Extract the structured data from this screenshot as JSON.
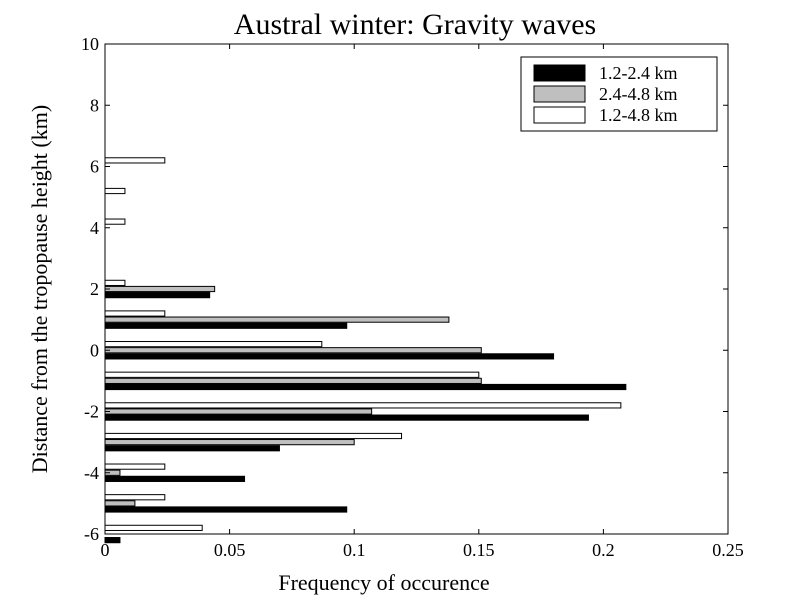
{
  "chart_data": {
    "type": "bar",
    "orientation": "horizontal",
    "title": "Austral winter: Gravity waves",
    "xlabel": "Frequency of occurence",
    "ylabel": "Distance from the tropopause height (km)",
    "xlim": [
      0,
      0.25
    ],
    "ylim": [
      -6,
      10
    ],
    "xticks": [
      {
        "value": 0,
        "label": "0"
      },
      {
        "value": 0.05,
        "label": "0.05"
      },
      {
        "value": 0.1,
        "label": "0.1"
      },
      {
        "value": 0.15,
        "label": "0.15"
      },
      {
        "value": 0.2,
        "label": "0.2"
      },
      {
        "value": 0.25,
        "label": "0.25"
      }
    ],
    "yticks": [
      {
        "value": -6,
        "label": "-6"
      },
      {
        "value": -4,
        "label": "-4"
      },
      {
        "value": -2,
        "label": "-2"
      },
      {
        "value": 0,
        "label": "0"
      },
      {
        "value": 2,
        "label": "2"
      },
      {
        "value": 4,
        "label": "4"
      },
      {
        "value": 6,
        "label": "6"
      },
      {
        "value": 8,
        "label": "8"
      },
      {
        "value": 10,
        "label": "10"
      }
    ],
    "grid": false,
    "legend_position": "top-right",
    "categories": [
      -6,
      -5,
      -4,
      -3,
      -2,
      -1,
      0,
      1,
      2,
      3,
      4,
      5,
      6
    ],
    "series": [
      {
        "name": "1.2-2.4 km",
        "color": "#000000",
        "offset_km": -0.2,
        "values": [
          0.006,
          0.097,
          0.056,
          0.07,
          0.194,
          0.209,
          0.18,
          0.097,
          0.042,
          0,
          0,
          0,
          0
        ]
      },
      {
        "name": "2.4-4.8 km",
        "color": "#bfbfbf",
        "offset_km": 0,
        "values": [
          0,
          0.012,
          0.006,
          0.1,
          0.107,
          0.151,
          0.151,
          0.138,
          0.044,
          0,
          0,
          0,
          0
        ]
      },
      {
        "name": "1.2-4.8 km",
        "color": "#ffffff",
        "offset_km": 0.2,
        "values": [
          0.039,
          0.024,
          0.024,
          0.119,
          0.207,
          0.15,
          0.087,
          0.024,
          0.008,
          0,
          0.008,
          0.008,
          0.024
        ]
      }
    ]
  }
}
